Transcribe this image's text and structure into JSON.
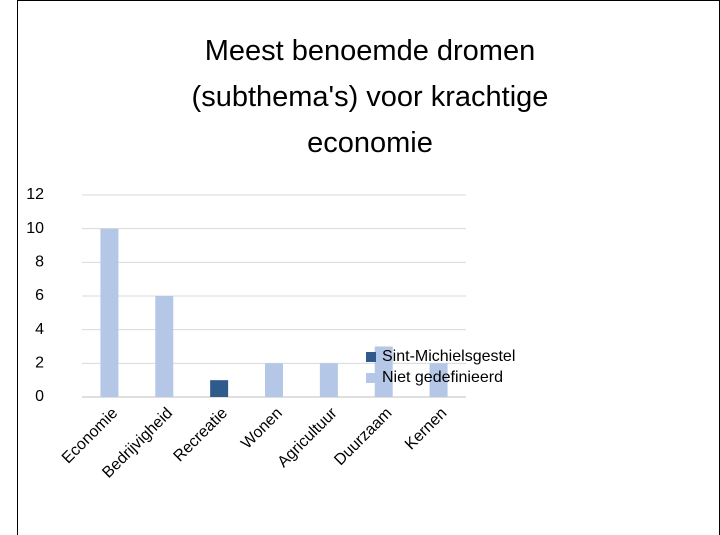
{
  "chart_data": {
    "type": "stacked_bar",
    "title": "Meest benoemde dromen (subthema's) voor krachtige economie",
    "categories": [
      "Economie",
      "Bedrijvigheid",
      "Recreatie",
      "Wonen",
      "Agricultuur",
      "Duurzaam",
      "Kernen"
    ],
    "series": [
      {
        "name": "Sint-Michielsgestel",
        "color": "#2e5a8c",
        "values": [
          null,
          null,
          1,
          null,
          null,
          null,
          null
        ]
      },
      {
        "name": "Niet gedefinieerd",
        "color": "#b4c7e7",
        "values": [
          10,
          6,
          null,
          2,
          2,
          3,
          2
        ]
      }
    ],
    "ylim": [
      0,
      12
    ],
    "yticks": [
      0,
      2,
      4,
      6,
      8,
      10,
      12
    ],
    "grid": true,
    "legend": "right"
  }
}
